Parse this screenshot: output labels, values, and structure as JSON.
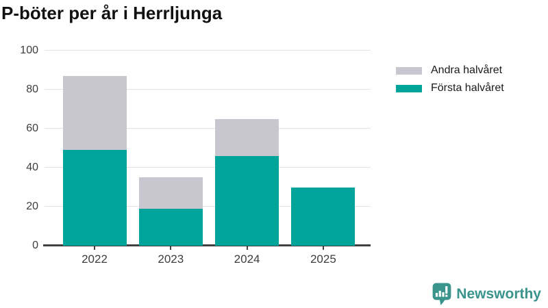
{
  "header": {
    "title": "P-böter per år i Herrljunga"
  },
  "chart_data": {
    "type": "bar",
    "stacked": true,
    "title": "P-böter per år i Herrljunga",
    "categories": [
      "2022",
      "2023",
      "2024",
      "2025"
    ],
    "series": [
      {
        "name": "Första halvåret",
        "color": "#00a49b",
        "values": [
          49,
          19,
          46,
          30
        ]
      },
      {
        "name": "Andra halvåret",
        "color": "#c8c6ce",
        "values": [
          38,
          16,
          19,
          0
        ]
      }
    ],
    "totals": [
      87,
      35,
      65,
      30
    ],
    "xlabel": "",
    "ylabel": "",
    "ylim": [
      0,
      100
    ],
    "yticks": [
      0,
      20,
      40,
      60,
      80,
      100
    ],
    "grid": "horizontal",
    "legend_position": "top-right",
    "legend": [
      {
        "label": "Andra halvåret",
        "color": "#c8c6ce"
      },
      {
        "label": "Första halvåret",
        "color": "#00a49b"
      }
    ]
  },
  "branding": {
    "name": "Newsworthy",
    "color": "#3a948c",
    "icon": "newsworthy-speech-bubble-bar-chart-icon"
  },
  "colors": {
    "first_half": "#00a49b",
    "second_half": "#c8c6ce",
    "gridline": "#e2e2e7",
    "axis_line": "#3f3f3f",
    "tick_label": "#3d3d3d",
    "title_text": "#111111"
  }
}
